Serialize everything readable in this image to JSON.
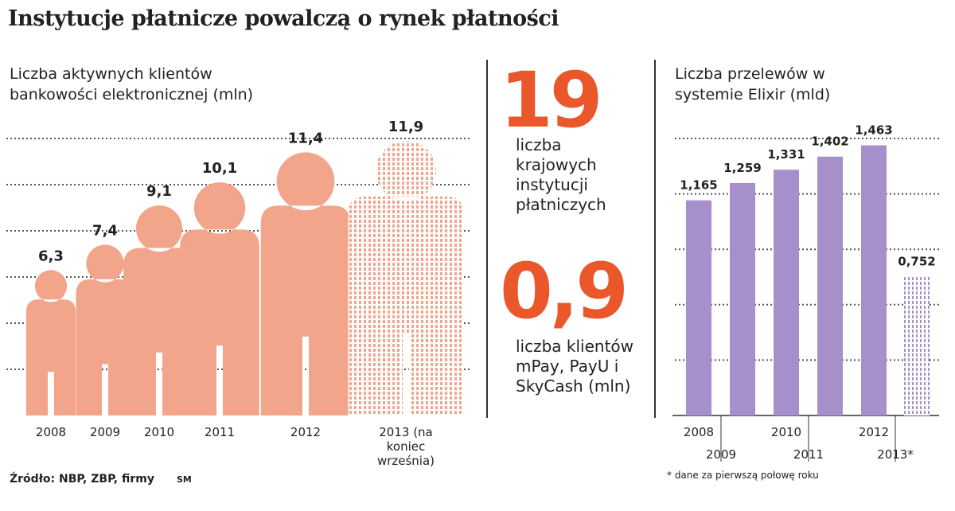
{
  "title": "Instytucje płatnicze powalczą o rynek płatności",
  "chart_data": [
    {
      "type": "people",
      "title": "Liczba aktywnych klientów bankowości elektronicznej (mln)",
      "categories": [
        "2008",
        "2009",
        "2010",
        "2011",
        "2012",
        "2013 (na koniec września)"
      ],
      "values": [
        6.3,
        7.4,
        9.1,
        10.1,
        11.4,
        11.9
      ],
      "value_labels": [
        "6,3",
        "7,4",
        "9,1",
        "10,1",
        "11,4",
        "11,9"
      ],
      "color": "#f2a58a",
      "ylim": [
        0,
        12
      ],
      "yticks": [
        2,
        4,
        6,
        8,
        10,
        12
      ],
      "grid": true
    },
    {
      "type": "bar",
      "title": "Liczba przelewów w systemie Elixir (mld)",
      "categories": [
        "2008",
        "2009",
        "2010",
        "2011",
        "2012",
        "2013*"
      ],
      "values": [
        1.165,
        1.259,
        1.331,
        1.402,
        1.463,
        0.752
      ],
      "value_labels": [
        "1,165",
        "1,259",
        "1,331",
        "1,402",
        "1,463",
        "0,752"
      ],
      "color": "#a68fcb",
      "ylim": [
        0,
        1.5
      ],
      "yticks": [
        0.3,
        0.6,
        0.9,
        1.2,
        1.5
      ],
      "grid": true,
      "note": "* dane za pierwszą połowę roku"
    }
  ],
  "stats": [
    {
      "value": "19",
      "text": "liczba krajowych instytucji płatniczych"
    },
    {
      "value": "0,9",
      "text": "liczba klientów mPay, PayU i SkyCash (mln)"
    }
  ],
  "source": "Źródło: NBP, ZBP, firmy",
  "author": "SM"
}
